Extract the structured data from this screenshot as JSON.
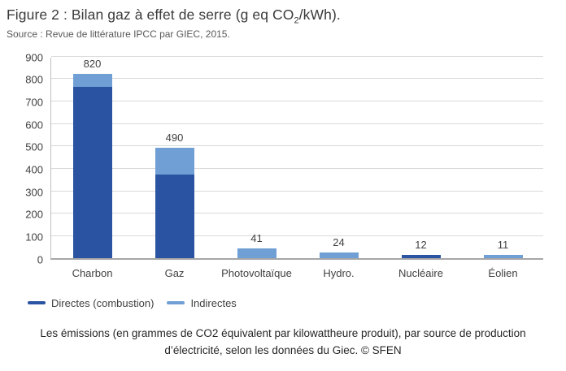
{
  "header": {
    "title_pre": "Figure 2 : Bilan gaz à effet de serre (g eq CO",
    "title_sub": "2",
    "title_post": "/kWh).",
    "source": "Source : Revue de littérature IPCC par GIEC, 2015."
  },
  "chart_data": {
    "type": "bar",
    "stacked": true,
    "title": "Bilan gaz à effet de serre (g eq CO2/kWh)",
    "xlabel": "",
    "ylabel": "",
    "ylim": [
      0,
      900
    ],
    "ytick_step": 100,
    "grid": true,
    "legend_position": "bottom-left",
    "categories": [
      "Charbon",
      "Gaz",
      "Photovoltaïque",
      "Hydro.",
      "Nucléaire",
      "Éolien"
    ],
    "series": [
      {
        "name": "Directes (combustion)",
        "color": "#2A53A1",
        "values": [
          760,
          370,
          0,
          0,
          12,
          0
        ]
      },
      {
        "name": "Indirectes",
        "color": "#6F9FD4",
        "values": [
          60,
          120,
          41,
          24,
          0,
          11
        ]
      }
    ],
    "totals": [
      820,
      490,
      41,
      24,
      12,
      11
    ],
    "data_labels": [
      "820",
      "490",
      "41",
      "24",
      "12",
      "11"
    ]
  },
  "caption": {
    "lines": [
      "Les émissions (en grammes de CO2 équivalent par kilowattheure produit), par source de production",
      "d’électricité, selon les données du Giec. © SFEN"
    ]
  },
  "colors": {
    "directes": "#2A53A1",
    "indirectes": "#6F9FD4",
    "gridline": "#d9d9d9",
    "axis_line": "#bfbfbf",
    "baseline": "#a6a6a6",
    "text": "#404040"
  }
}
